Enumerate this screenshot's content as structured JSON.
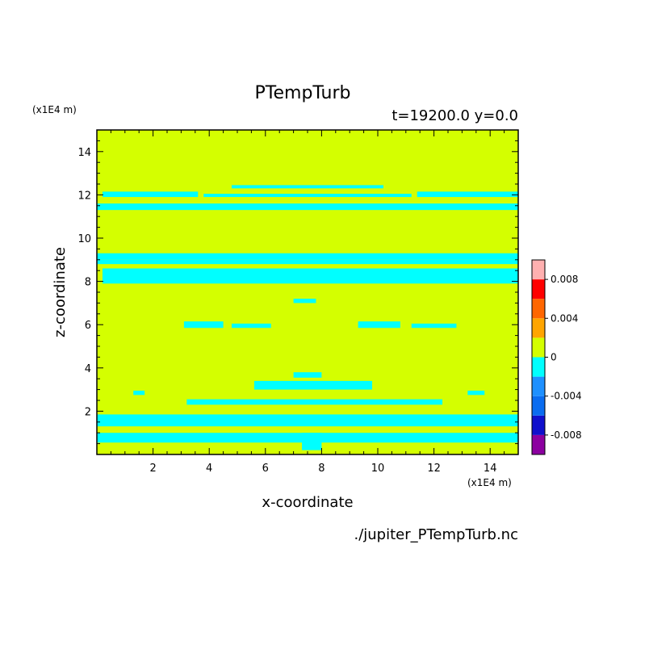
{
  "chart_data": {
    "type": "heatmap",
    "title": "PTempTurb",
    "subtitle": "t=19200.0 y=0.0",
    "xlabel": "x-coordinate",
    "ylabel": "z-coordinate",
    "x_unit": "(x1E4 m)",
    "y_unit": "(x1E4 m)",
    "xlim": [
      0,
      15
    ],
    "ylim": [
      0,
      15
    ],
    "x_ticks": [
      2,
      4,
      6,
      8,
      10,
      12,
      14
    ],
    "y_ticks": [
      2,
      4,
      6,
      8,
      10,
      12,
      14
    ],
    "filename": "./jupiter_PTempTurb.nc",
    "colorbar": {
      "levels": [
        -0.01,
        -0.008,
        -0.006,
        -0.004,
        -0.002,
        0,
        0.002,
        0.004,
        0.006,
        0.008,
        0.01
      ],
      "colors": [
        "#8c00a0",
        "#1010cc",
        "#0a6cf0",
        "#1e90ff",
        "#00ffff",
        "#d4ff00",
        "#ffa500",
        "#ff6600",
        "#ff0000",
        "#ffb0b0"
      ],
      "tick_labels": [
        "0.008",
        "0.004",
        "0",
        "-0.004",
        "-0.008"
      ],
      "tick_values": [
        0.008,
        0.004,
        0,
        -0.004,
        -0.008
      ]
    },
    "background_value": "0 to 0.002",
    "negative_regions_value": "-0.002 to 0",
    "negative_regions": [
      {
        "x": [
          0,
          15
        ],
        "z": [
          11.3,
          11.6
        ]
      },
      {
        "x": [
          0.2,
          3.6
        ],
        "z": [
          11.9,
          12.15
        ]
      },
      {
        "x": [
          3.8,
          11.2
        ],
        "z": [
          11.9,
          12.05
        ]
      },
      {
        "x": [
          11.4,
          15
        ],
        "z": [
          11.9,
          12.15
        ]
      },
      {
        "x": [
          4.8,
          10.2
        ],
        "z": [
          12.3,
          12.45
        ]
      },
      {
        "x": [
          0,
          15
        ],
        "z": [
          9.0,
          9.3
        ]
      },
      {
        "x": [
          0,
          15
        ],
        "z": [
          8.8,
          9.0
        ]
      },
      {
        "x": [
          0.2,
          15
        ],
        "z": [
          7.9,
          8.6
        ]
      },
      {
        "x": [
          7.0,
          7.8
        ],
        "z": [
          7.0,
          7.2
        ]
      },
      {
        "x": [
          3.1,
          4.5
        ],
        "z": [
          5.85,
          6.15
        ]
      },
      {
        "x": [
          4.8,
          6.2
        ],
        "z": [
          5.85,
          6.05
        ]
      },
      {
        "x": [
          9.3,
          10.8
        ],
        "z": [
          5.85,
          6.15
        ]
      },
      {
        "x": [
          11.2,
          12.8
        ],
        "z": [
          5.85,
          6.05
        ]
      },
      {
        "x": [
          7.0,
          8.0
        ],
        "z": [
          3.55,
          3.8
        ]
      },
      {
        "x": [
          5.6,
          9.8
        ],
        "z": [
          3.0,
          3.4
        ]
      },
      {
        "x": [
          1.3,
          1.7
        ],
        "z": [
          2.75,
          2.95
        ]
      },
      {
        "x": [
          13.2,
          13.8
        ],
        "z": [
          2.75,
          2.95
        ]
      },
      {
        "x": [
          3.2,
          12.3
        ],
        "z": [
          2.3,
          2.55
        ]
      },
      {
        "x": [
          0,
          15
        ],
        "z": [
          1.3,
          1.85
        ]
      },
      {
        "x": [
          0,
          15
        ],
        "z": [
          0.55,
          1.0
        ]
      },
      {
        "x": [
          7.3,
          8.0
        ],
        "z": [
          0.2,
          1.0
        ]
      }
    ]
  }
}
